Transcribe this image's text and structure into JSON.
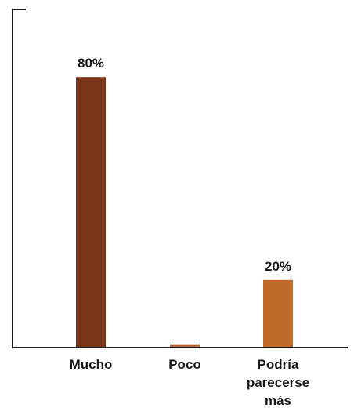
{
  "chart_data": {
    "type": "bar",
    "categories": [
      [
        "Mucho"
      ],
      [
        "Poco"
      ],
      [
        "Podría",
        "parecerse",
        "más"
      ]
    ],
    "values": [
      80,
      1,
      20
    ],
    "data_labels": [
      "80%",
      "",
      "20%"
    ],
    "colors": [
      "#7a3418",
      "#b4623c",
      "#bf6a29"
    ],
    "axis_color": "#1a1a1a",
    "ylim": [
      0,
      100
    ],
    "grid": false,
    "title": "",
    "xlabel": "",
    "ylabel": ""
  }
}
